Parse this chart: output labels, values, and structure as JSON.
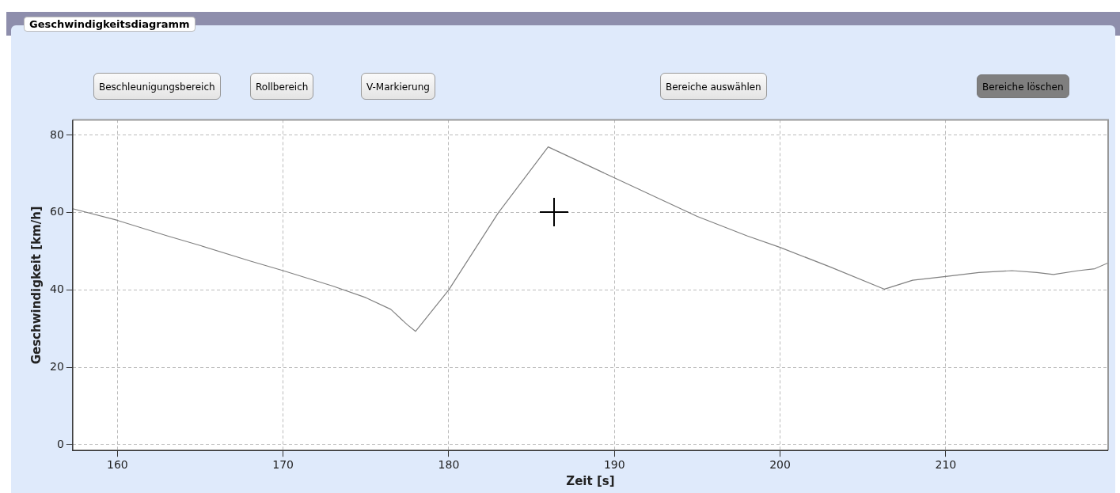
{
  "chart_data": {
    "type": "line",
    "title": "Geschwindigkeitsdiagramm",
    "xlabel": "Zeit [s]",
    "ylabel": "Geschwindigkeit [km/h]",
    "annotations": [
      "Beschleunigungsbereich",
      "Rollbereich",
      "V-Markierung",
      "Bereiche auswählen",
      "Bereiche löschen"
    ],
    "x": [
      157.3,
      160,
      163,
      165,
      168,
      170,
      173,
      175,
      176.5,
      177.5,
      178,
      180,
      183,
      186,
      188,
      190,
      193,
      195,
      198,
      200,
      203,
      206.3,
      208,
      210,
      212,
      214,
      215.5,
      216.5,
      218,
      219,
      219.8
    ],
    "series": [
      {
        "color": "#808080",
        "values": [
          61,
          58,
          54,
          51.5,
          47.5,
          45,
          41,
          38,
          35,
          31,
          29.3,
          40,
          60,
          77,
          73,
          69,
          63,
          59,
          54,
          51,
          46,
          40.2,
          42.5,
          43.5,
          44.5,
          45,
          44.5,
          44,
          45,
          45.5,
          47
        ]
      }
    ],
    "xlim": [
      157.3,
      219.8
    ],
    "xticks": [
      160,
      170,
      180,
      190,
      200,
      210
    ],
    "ylim": [
      -1.5,
      84
    ],
    "yticks": [
      0,
      20,
      40,
      60,
      80
    ],
    "grid": true,
    "marker": "none",
    "line_style": "solid"
  }
}
